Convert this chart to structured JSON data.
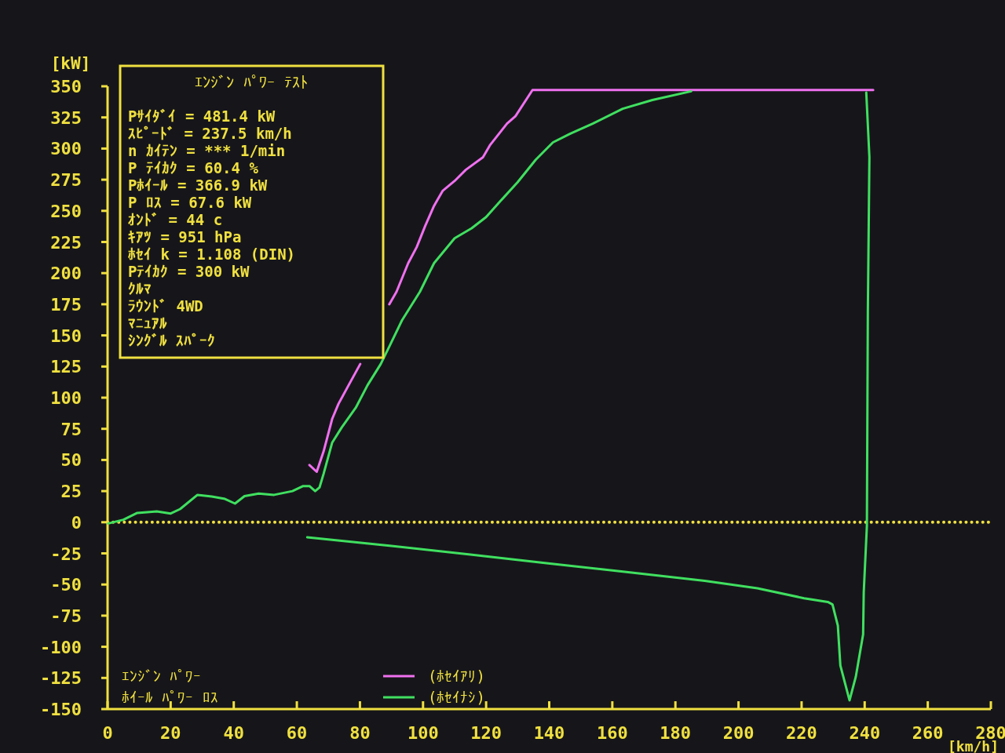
{
  "chart_data": {
    "type": "line",
    "title": "ｴﾝｼﾞﾝ ﾊﾟﾜｰ ﾃｽﾄ",
    "xlabel": "[km/h]",
    "ylabel": "[kW]",
    "xlim": [
      0,
      280
    ],
    "ylim": [
      -150,
      350
    ],
    "xticks": [
      0,
      20,
      40,
      60,
      80,
      100,
      120,
      140,
      160,
      180,
      200,
      220,
      240,
      260,
      280
    ],
    "yticks": [
      -150,
      -125,
      -100,
      -75,
      -50,
      -25,
      0,
      25,
      50,
      75,
      100,
      125,
      150,
      175,
      200,
      225,
      250,
      275,
      300,
      325,
      350
    ],
    "grid": false,
    "legend": "bottom",
    "line_style": "solid",
    "marker": "none",
    "series": [
      {
        "name": "(ﾎｾｲｱﾘ)",
        "color": "#f070f0",
        "x": [
          89.3,
          91.6,
          95.3,
          98,
          100.7,
          103.5,
          106.2,
          110,
          113.6,
          119,
          121.3,
          126.6,
          129.3,
          134.7,
          242.7
        ],
        "values": [
          175,
          185,
          208,
          221,
          238,
          254,
          266,
          274,
          283,
          293,
          303,
          320,
          326,
          347,
          347
        ]
      },
      {
        "color": "#f070f0",
        "x": [
          64,
          66.3,
          68.5,
          71.2,
          73.2,
          76.4,
          80.1
        ],
        "values": [
          46,
          40.5,
          57,
          83,
          95,
          110,
          127
        ]
      },
      {
        "name": "(ﾎｾｲﾅｼ)",
        "color": "#40e060",
        "x": [
          0.2,
          5,
          9.4,
          15.6,
          20,
          23,
          28.5,
          33,
          37.2,
          40.4,
          43.4,
          47.9,
          52.8,
          58.6,
          62,
          64,
          65.8,
          67.2,
          68.5,
          71.2,
          74.2,
          78.7,
          82.4,
          86.6,
          89.3,
          93.3,
          99,
          103.5,
          110,
          115.4,
          120,
          124.6,
          130,
          135.7,
          141.2,
          146.7,
          153.8,
          163.3,
          172.7,
          185
        ],
        "values": [
          -1,
          2,
          7.5,
          8.7,
          7,
          10.6,
          22,
          20.6,
          18.7,
          15,
          21,
          23,
          22,
          25,
          29,
          29,
          25,
          28,
          39,
          64,
          76,
          92,
          110,
          127,
          141,
          162,
          185,
          208,
          228,
          236,
          245,
          258,
          273,
          291,
          305,
          312,
          320,
          332,
          339,
          346
        ]
      },
      {
        "color": "#40e060",
        "x": [
          63.3,
          90,
          115,
          139.7,
          164.5,
          189.3,
          206,
          220.8,
          228.3,
          229.8,
          231.5,
          232.3,
          235.2,
          237.2,
          239.5,
          239.7,
          240.7,
          241,
          241.5,
          240.5
        ],
        "values": [
          -12,
          -19,
          -26,
          -33,
          -40,
          -47,
          -53,
          -61,
          -64,
          -66,
          -83,
          -115,
          -143,
          -124,
          -90,
          -56,
          -3,
          168,
          293,
          345
        ]
      }
    ],
    "ref_lines": [
      {
        "axis": "y",
        "value": 0,
        "color": "#f0e040",
        "line_style": "dotted"
      }
    ],
    "annotations": [
      "Pｻｲﾀﾞｲ = 481.4 kW",
      "ｽﾋﾟｰﾄﾞ = 237.5 km/h",
      "n ｶｲﾃﾝ = *** 1/min",
      "P ﾃｲｶｸ = 60.4 %",
      "Pﾎｲｰﾙ = 366.9 kW",
      "P ﾛｽ = 67.6 kW",
      "ｵﾝﾄﾞ = 44 c",
      "ｷｱﾂ = 951 hPa",
      "ﾎｾｲ k = 1.108 (DIN)",
      "Pﾃｲｶｸ = 300 kW",
      "ｸﾙﾏ",
      "ﾗｳﾝﾄﾞ 4WD",
      "ﾏﾆｭｱﾙ",
      "ｼﾝｸﾞﾙ ｽﾊﾟｰｸ",
      "ｴﾝｼﾞﾝ ﾊﾟﾜｰ",
      "ﾎｲｰﾙ ﾊﾟﾜｰ ﾛｽ"
    ]
  }
}
